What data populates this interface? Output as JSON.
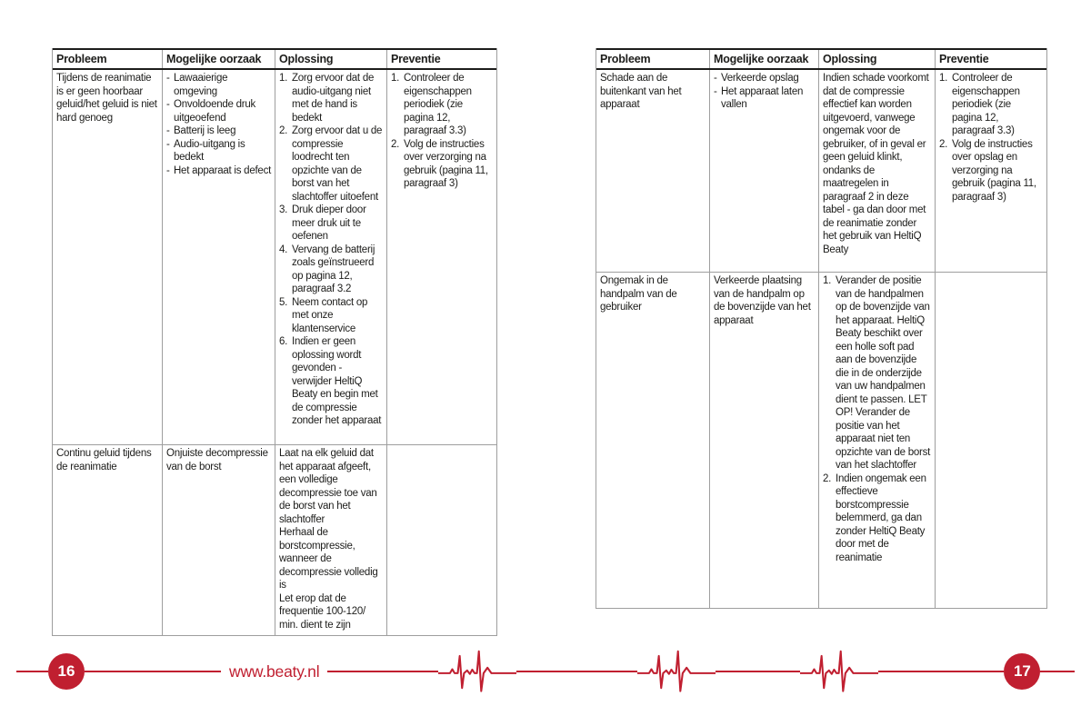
{
  "colors": {
    "accent_red": "#c01f30",
    "text": "#1d1d1b",
    "grid_line": "#9e9e9e"
  },
  "footer": {
    "website": "www.beaty.nl",
    "left_page_number": "16",
    "right_page_number": "17"
  },
  "pages": [
    {
      "page_number": "16",
      "table": {
        "headers": [
          "Probleem",
          "Mogelijke oorzaak",
          "Oplossing",
          "Preventie"
        ],
        "rows": [
          {
            "probleem": {
              "type": "plain",
              "items": [
                "Tijdens de reanimatie is er geen hoorbaar geluid/het geluid is niet hard genoeg"
              ]
            },
            "oorzaak": {
              "type": "dash",
              "items": [
                "Lawaaierige omgeving",
                "Onvoldoende druk uitgeoefend",
                "Batterij is leeg",
                "Audio-uitgang is bedekt",
                "Het apparaat is defect"
              ]
            },
            "oplossing": {
              "type": "numbered",
              "items": [
                "Zorg ervoor dat de audio-uitgang niet met de hand is bedekt",
                "Zorg ervoor dat u de compressie loodrecht ten opzichte van de borst van het slachtoffer uitoefent",
                "Druk dieper door meer druk uit te oefenen",
                "Vervang de batterij zoals geïnstrueerd op pagina 12, paragraaf 3.2",
                "Neem contact op met onze klantenservice",
                "Indien er geen oplossing wordt gevonden - verwijder HeltiQ Beaty en begin met de compressie zonder het apparaat"
              ]
            },
            "preventie": {
              "type": "numbered",
              "items": [
                "Controleer de eigenschappen periodiek (zie pagina 12, paragraaf 3.3)",
                "Volg de instructies over verzorging na gebruik (pagina 11, paragraaf 3)"
              ]
            }
          },
          {
            "probleem": {
              "type": "plain",
              "items": [
                "Continu geluid tijdens de reanimatie"
              ]
            },
            "oorzaak": {
              "type": "plain",
              "items": [
                "Onjuiste decompressie van de borst"
              ]
            },
            "oplossing": {
              "type": "plain",
              "items": [
                "Laat na elk geluid dat het apparaat afgeeft, een volledige decompressie toe van de borst van het slachtoffer",
                "Herhaal de borstcompressie, wanneer de decompressie volledig is",
                "Let erop dat de frequentie 100-120/ min. dient te zijn"
              ]
            },
            "preventie": {
              "type": "plain",
              "items": []
            }
          }
        ]
      }
    },
    {
      "page_number": "17",
      "table": {
        "headers": [
          "Probleem",
          "Mogelijke oorzaak",
          "Oplossing",
          "Preventie"
        ],
        "rows": [
          {
            "probleem": {
              "type": "plain",
              "items": [
                "Schade aan de buitenkant van het apparaat"
              ]
            },
            "oorzaak": {
              "type": "dash",
              "items": [
                "Verkeerde opslag",
                "Het apparaat laten vallen"
              ]
            },
            "oplossing": {
              "type": "plain",
              "items": [
                "Indien schade voorkomt dat de compressie effectief kan worden uitgevoerd, vanwege ongemak voor de gebruiker, of in geval er geen geluid klinkt, ondanks de maatregelen in paragraaf 2 in deze tabel - ga dan door met de reanimatie zonder het gebruik van HeltiQ Beaty"
              ]
            },
            "preventie": {
              "type": "numbered",
              "items": [
                "Controleer de eigenschappen periodiek (zie pagina 12, paragraaf 3.3)",
                "Volg de instructies over opslag en verzorging na gebruik (pagina 11, paragraaf 3)"
              ]
            }
          },
          {
            "probleem": {
              "type": "plain",
              "items": [
                "Ongemak in de handpalm van de gebruiker"
              ]
            },
            "oorzaak": {
              "type": "plain",
              "items": [
                "Verkeerde plaatsing van de handpalm op de bovenzijde van het apparaat"
              ]
            },
            "oplossing": {
              "type": "numbered",
              "items": [
                "Verander de positie van de handpalmen op de bovenzijde van het apparaat. HeltiQ Beaty beschikt over een holle soft pad aan de bovenzijde die in de onderzijde van uw handpalmen dient te passen. LET OP! Verander de positie van het apparaat niet ten opzichte van de borst van het slachtoffer",
                "Indien ongemak een effectieve borstcompressie belemmerd, ga dan zonder HeltiQ Beaty door met de reanimatie"
              ]
            },
            "preventie": {
              "type": "plain",
              "items": []
            }
          }
        ]
      }
    }
  ]
}
